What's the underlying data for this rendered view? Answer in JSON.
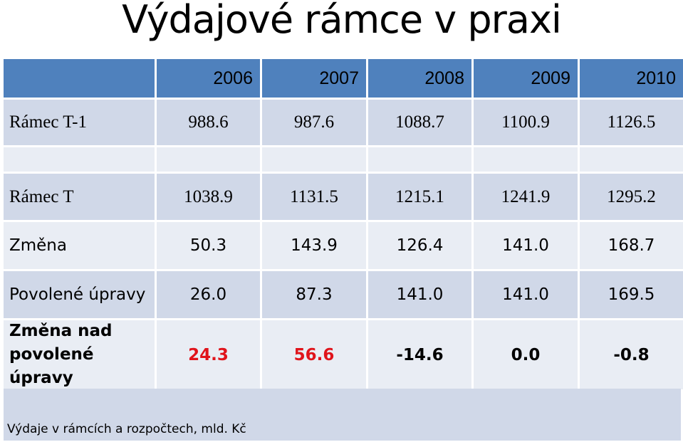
{
  "title": "Výdajové rámce v praxi",
  "table": {
    "years": [
      "2006",
      "2007",
      "2008",
      "2009",
      "2010"
    ],
    "rows": [
      {
        "label": "Rámec T-1",
        "values": [
          "988.6",
          "987.6",
          "1088.7",
          "1100.9",
          "1126.5"
        ]
      },
      {
        "label": "",
        "values": [
          "",
          "",
          "",
          "",
          ""
        ]
      },
      {
        "label": "Rámec T",
        "values": [
          "1038.9",
          "1131.5",
          "1215.1",
          "1241.9",
          "1295.2"
        ]
      },
      {
        "label": "Změna",
        "values": [
          "50.3",
          "143.9",
          "126.4",
          "141.0",
          "168.7"
        ]
      },
      {
        "label": "Povolené úpravy",
        "values": [
          "26.0",
          "87.3",
          "141.0",
          "141.0",
          "169.5"
        ]
      },
      {
        "label": "Změna nad povolené úpravy",
        "values": [
          "24.3",
          "56.6",
          "-14.6",
          "0.0",
          "-0.8"
        ]
      }
    ]
  },
  "footer": "Výdaje v rámcích a rozpočtech, mld. Kč",
  "colors": {
    "header": "#4f81bd",
    "row_dark": "#d0d8e8",
    "row_light": "#e9edf4",
    "positive_highlight": "#e0141b"
  }
}
